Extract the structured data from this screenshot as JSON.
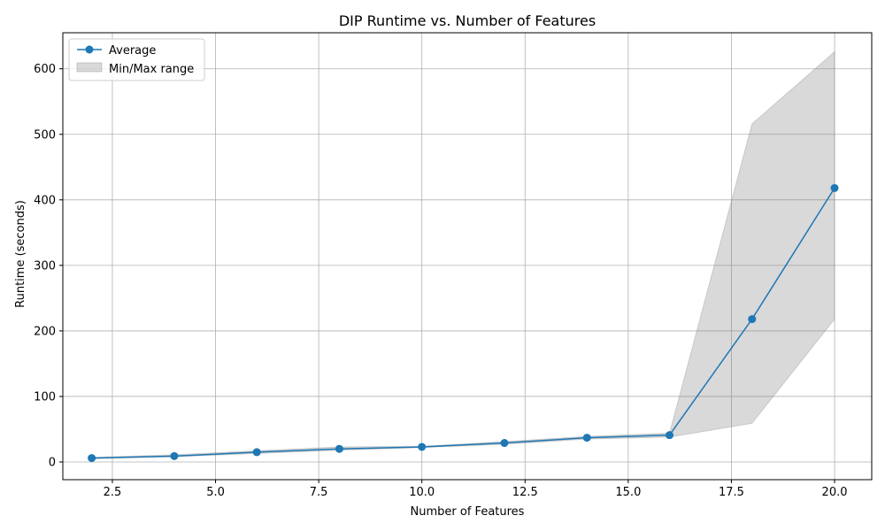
{
  "chart_data": {
    "type": "line",
    "title": "DIP Runtime vs. Number of Features",
    "xlabel": "Number of Features",
    "ylabel": "Runtime (seconds)",
    "xlim": [
      1.3,
      20.9
    ],
    "ylim": [
      -27,
      655
    ],
    "x_ticks": [
      2.5,
      5.0,
      7.5,
      10.0,
      12.5,
      15.0,
      17.5,
      20.0
    ],
    "x_tick_labels": [
      "2.5",
      "5.0",
      "7.5",
      "10.0",
      "12.5",
      "15.0",
      "17.5",
      "20.0"
    ],
    "y_ticks": [
      0,
      100,
      200,
      300,
      400,
      500,
      600
    ],
    "y_tick_labels": [
      "0",
      "100",
      "200",
      "300",
      "400",
      "500",
      "600"
    ],
    "grid": true,
    "legend_position": "top-left",
    "x": [
      2,
      4,
      6,
      8,
      10,
      12,
      14,
      16,
      18,
      20
    ],
    "series": [
      {
        "name": "Average",
        "values": [
          6,
          9,
          15,
          20,
          23,
          29,
          37,
          41,
          218,
          418
        ],
        "color": "#1f77b4"
      },
      {
        "name": "Min/Max range",
        "min": [
          5,
          8,
          13,
          18,
          22,
          27,
          35,
          38,
          59,
          218
        ],
        "max": [
          7,
          11,
          17,
          23,
          24,
          31,
          39,
          44,
          516,
          626
        ],
        "color": "#808080"
      }
    ]
  }
}
